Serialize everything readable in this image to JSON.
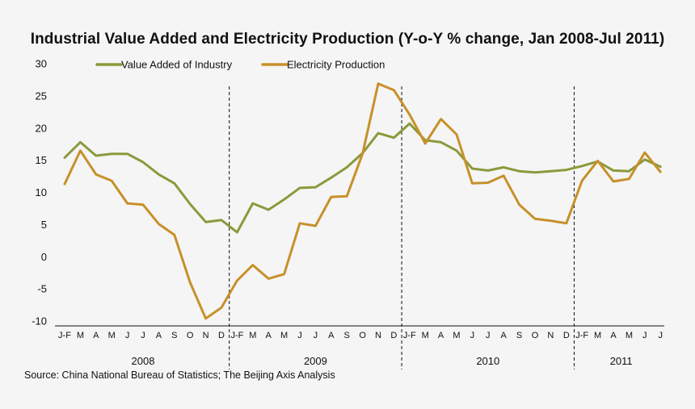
{
  "chart_data": {
    "type": "line",
    "title": "Industrial Value Added and Electricity Production (Y-o-Y % change, Jan 2008-Jul 2011)",
    "ylim": [
      -10,
      30
    ],
    "yticks": [
      30,
      25,
      20,
      15,
      10,
      5,
      0,
      -5,
      -10
    ],
    "x": [
      "J-F",
      "M",
      "A",
      "M",
      "J",
      "J",
      "A",
      "S",
      "O",
      "N",
      "D",
      "J-F",
      "M",
      "A",
      "M",
      "J",
      "J",
      "A",
      "S",
      "O",
      "N",
      "D",
      "J-F",
      "M",
      "A",
      "M",
      "J",
      "J",
      "A",
      "S",
      "O",
      "N",
      "D",
      "J-F",
      "M",
      "A",
      "M",
      "J",
      "J"
    ],
    "years": [
      {
        "label": "2008",
        "start": 0,
        "end": 10
      },
      {
        "label": "2009",
        "start": 11,
        "end": 21
      },
      {
        "label": "2010",
        "start": 22,
        "end": 32
      },
      {
        "label": "2011",
        "start": 33,
        "end": 38
      }
    ],
    "year_dividers": [
      10.5,
      21.5,
      32.5
    ],
    "series": [
      {
        "name": "Value Added of Industry",
        "color": "#8a9a3b",
        "values": [
          15.4,
          17.8,
          15.7,
          16.0,
          16.0,
          14.7,
          12.8,
          11.4,
          8.2,
          5.4,
          5.7,
          3.8,
          8.3,
          7.3,
          8.9,
          10.7,
          10.8,
          12.3,
          13.9,
          16.1,
          19.2,
          18.5,
          20.7,
          18.1,
          17.8,
          16.5,
          13.7,
          13.4,
          13.9,
          13.3,
          13.1,
          13.3,
          13.5,
          14.1,
          14.8,
          13.4,
          13.3,
          15.1,
          14.0
        ]
      },
      {
        "name": "Electricity Production",
        "color": "#c8902a",
        "values": [
          11.3,
          16.5,
          12.8,
          11.8,
          8.3,
          8.1,
          5.1,
          3.4,
          -4.0,
          -9.6,
          -7.9,
          -3.7,
          -1.3,
          -3.4,
          -2.7,
          5.2,
          4.8,
          9.3,
          9.4,
          16.0,
          26.9,
          25.9,
          22.1,
          17.6,
          21.4,
          19.0,
          11.4,
          11.5,
          12.6,
          8.1,
          5.9,
          5.6,
          5.2,
          11.8,
          14.9,
          11.7,
          12.1,
          16.2,
          13.2
        ]
      }
    ],
    "source": "Source: China National Bureau of Statistics; The Beijing Axis Analysis"
  }
}
